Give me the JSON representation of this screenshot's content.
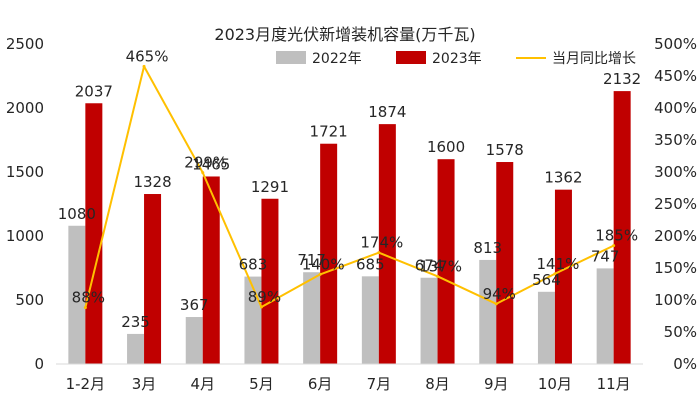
{
  "chart_data": {
    "type": "bar",
    "title": "2023月度光伏新增装机容量(万千瓦)",
    "categories": [
      "1-2月",
      "3月",
      "4月",
      "5月",
      "6月",
      "7月",
      "8月",
      "9月",
      "10月",
      "11月"
    ],
    "series": [
      {
        "name": "2022年",
        "type": "bar",
        "axis": "left",
        "color": "#bfbfbf",
        "values": [
          1080,
          235,
          367,
          683,
          717,
          685,
          674,
          813,
          564,
          747
        ]
      },
      {
        "name": "2023年",
        "type": "bar",
        "axis": "left",
        "color": "#c00000",
        "values": [
          2037,
          1328,
          1465,
          1291,
          1721,
          1874,
          1600,
          1578,
          1362,
          2132
        ]
      },
      {
        "name": "当月同比增长",
        "type": "line",
        "axis": "right",
        "color": "#ffc000",
        "values": [
          88,
          465,
          299,
          89,
          140,
          174,
          137,
          94,
          141,
          185
        ]
      }
    ],
    "y_left": {
      "min": 0,
      "max": 2500,
      "ticks": [
        "0",
        "500",
        "1000",
        "1500",
        "2000",
        "2500"
      ]
    },
    "y_right": {
      "min": 0,
      "max": 500,
      "ticks": [
        "0%",
        "50%",
        "100%",
        "150%",
        "200%",
        "250%",
        "300%",
        "350%",
        "400%",
        "450%",
        "500%"
      ]
    },
    "legend": {
      "position": "top"
    },
    "grid": false
  }
}
